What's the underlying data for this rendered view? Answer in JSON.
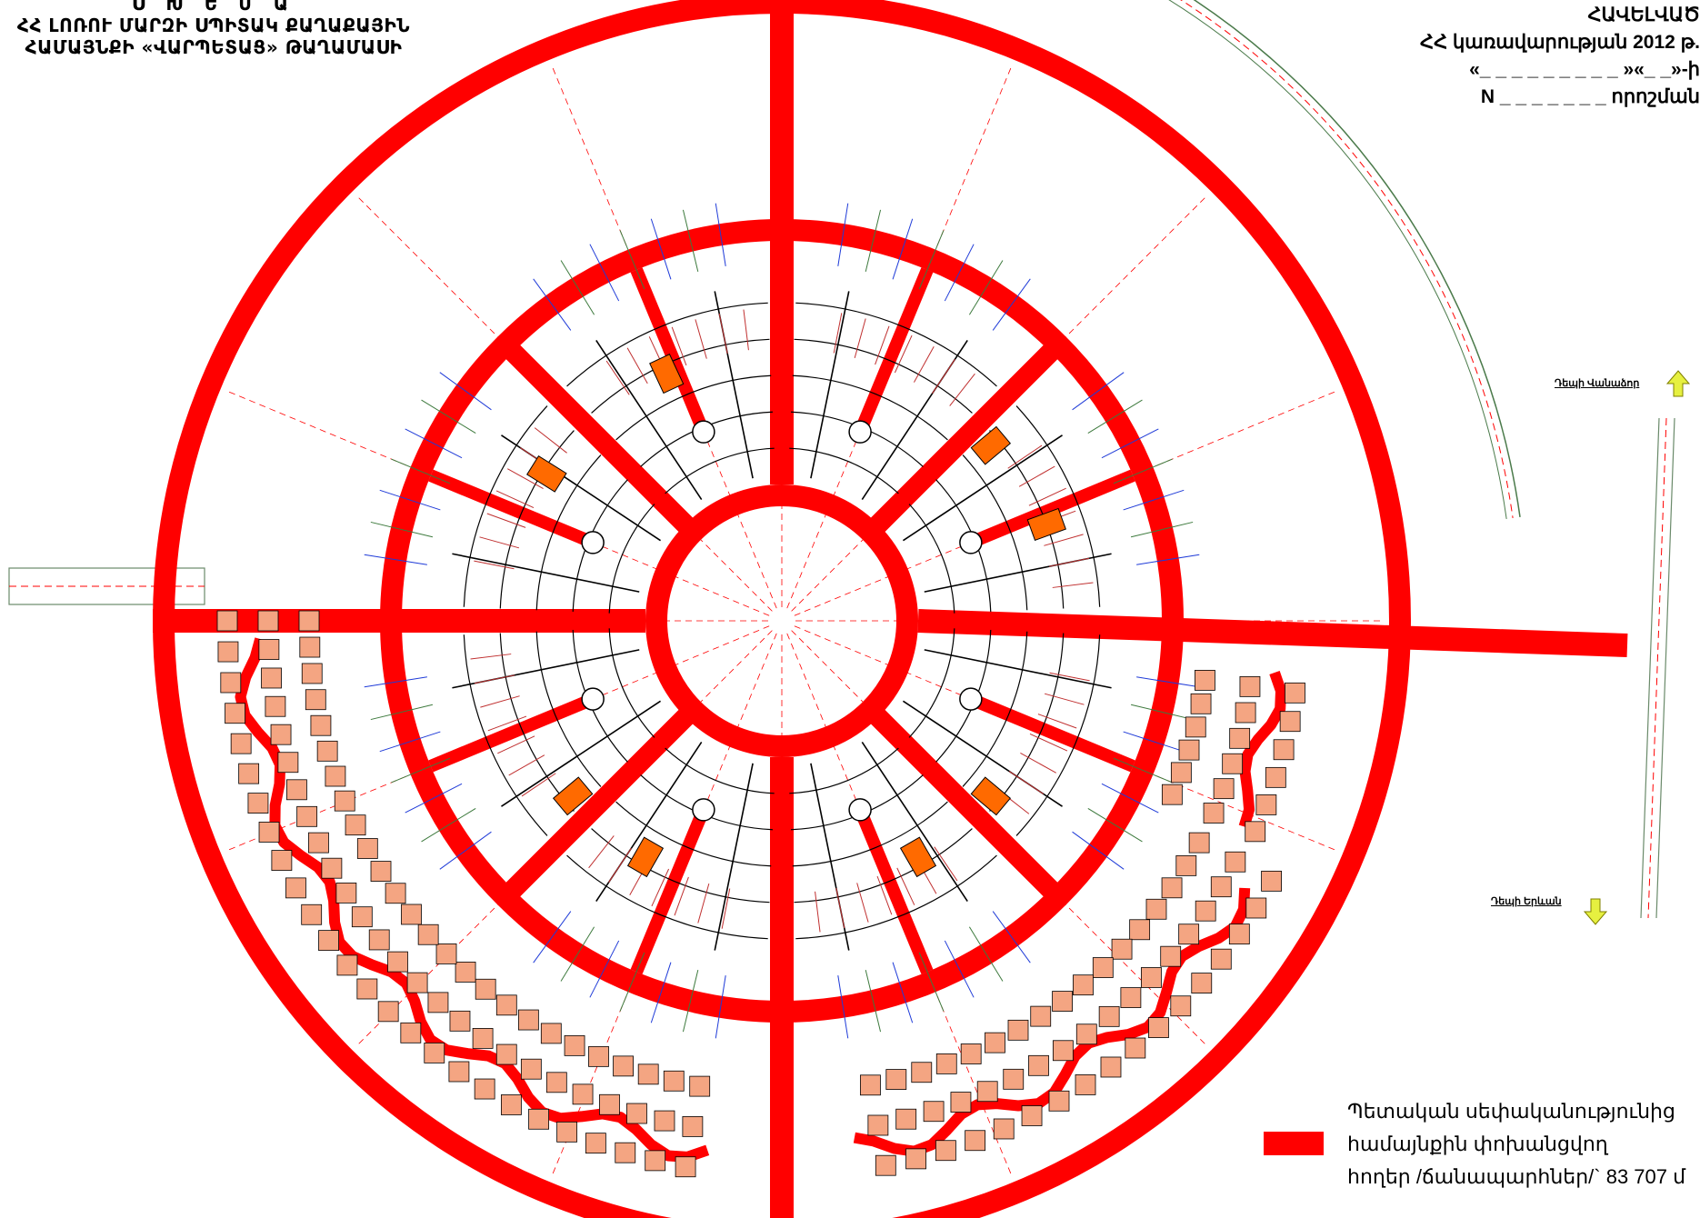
{
  "title": {
    "line1": "Ս Խ Ե Մ Ա",
    "line2": "ՀՀ ԼՈՌՈՒ ՄԱՐԶԻ ՍՊԻՏԱԿ ՔԱՂԱՔԱՅԻՆ",
    "line3": "ՀԱՄԱՅՆՔԻ «ՎԱՐՊԵՏԱՑ» ԹԱՂԱՄԱՍԻ"
  },
  "approval": {
    "heading": "ՀԱՎԵԼՎԱԾ",
    "line2": "ՀՀ կառավարության 2012 թ.",
    "line3": "«_ _ _ _ _ _ _ _ _ »«_ _»-ի",
    "line4": "N _ _ _ _ _ _ _ որոշման"
  },
  "directions": {
    "north": "Դեպի Վանաձոր",
    "south": "Դեպի Երևան"
  },
  "legend": {
    "color": "#ff0000",
    "line1": "Պետական սեփականությունից",
    "line2": "համայնքին փոխանցվող",
    "line3": "հողեր /ճանապարհներ/` 83 707 մ"
  },
  "colors": {
    "road": "#ff0000",
    "plot_outline": "#000000",
    "house": "#f4a582",
    "building": "#ff6a00",
    "arrow": "#e6f040"
  },
  "icons": {
    "north_arrow": "arrow-up-icon",
    "south_arrow": "arrow-down-icon"
  }
}
